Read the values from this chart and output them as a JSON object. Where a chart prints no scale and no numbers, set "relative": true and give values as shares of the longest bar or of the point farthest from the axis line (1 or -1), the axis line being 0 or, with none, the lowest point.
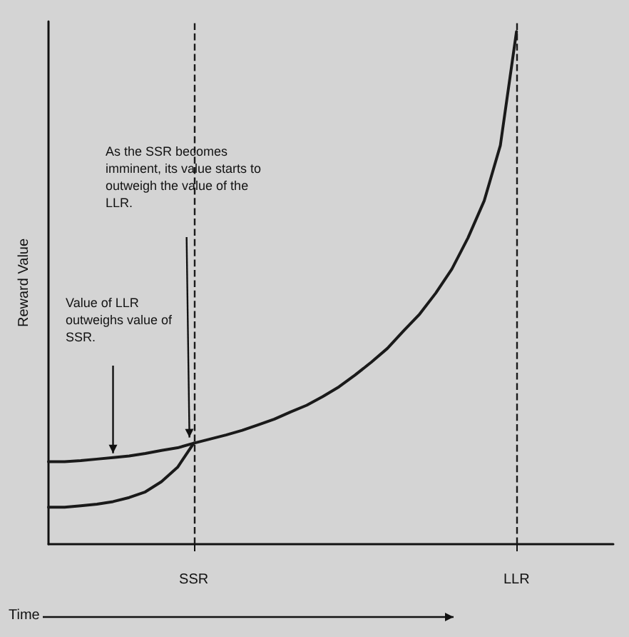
{
  "chart_data": {
    "type": "line",
    "relative": true,
    "xlabel": "Time",
    "ylabel": "Reward Value",
    "categories": [
      null,
      null,
      null,
      null,
      null,
      null,
      null,
      null,
      null,
      "SSR",
      null,
      null,
      null,
      null,
      null,
      null,
      null,
      null,
      null,
      null,
      null,
      null,
      null,
      null,
      null,
      null,
      null,
      null,
      null,
      "LLR",
      null,
      null,
      null,
      null,
      null,
      null
    ],
    "series": [
      {
        "color": "#1a1a1a",
        "values": [
          0.161,
          0.161,
          0.163,
          0.166,
          0.169,
          0.172,
          0.177,
          0.183,
          0.188,
          0.197,
          0.205,
          0.213,
          0.222,
          0.233,
          0.244,
          0.258,
          0.271,
          0.288,
          0.307,
          0.33,
          0.355,
          0.382,
          0.416,
          0.449,
          0.49,
          0.537,
          0.598,
          0.67,
          0.778,
          1,
          null,
          null,
          null,
          null,
          null,
          null
        ]
      },
      {
        "color": "#1a1a1a",
        "values": [
          0.072,
          0.072,
          0.075,
          0.078,
          0.083,
          0.091,
          0.102,
          0.122,
          0.15,
          0.197,
          null,
          null,
          null,
          null,
          null,
          null,
          null,
          null,
          null,
          null,
          null,
          null,
          null,
          null,
          null,
          null,
          null,
          null,
          null,
          null,
          null,
          null,
          null,
          null,
          null,
          null
        ]
      }
    ],
    "ref_lines": [
      {
        "axis": "x",
        "value": "SSR",
        "line_style": "dashed",
        "color": "#1a1a1a"
      },
      {
        "axis": "x",
        "value": "LLR",
        "line_style": "dashed",
        "color": "#1a1a1a"
      }
    ],
    "annotations": [
      "As the SSR becomes imminent, its value starts to outweigh the value of the LLR.",
      "Value of LLR outweighs value of SSR."
    ],
    "marker": "none",
    "line_style": "solid",
    "grid": false
  }
}
